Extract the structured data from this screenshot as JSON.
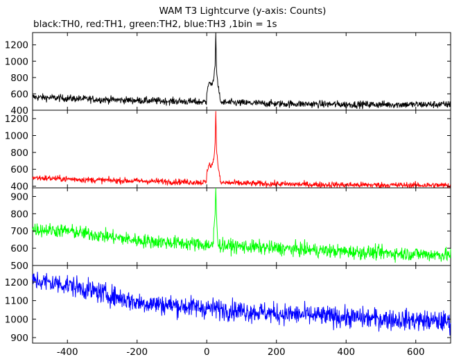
{
  "title": "WAM T3 Lightcurve (y-axis: Counts)",
  "subtitle": "black:TH0, red:TH1, green:TH2, blue:TH3 ,1bin = 1s",
  "chart_data": {
    "type": "line",
    "x_range": [
      -500,
      700
    ],
    "x_ticks": [
      -400,
      -200,
      0,
      200,
      400,
      600
    ],
    "panels": [
      {
        "name": "TH0",
        "color": "#000000",
        "ylim": [
          400,
          1350
        ],
        "y_ticks": [
          400,
          600,
          800,
          1000,
          1200
        ],
        "baseline": [
          [
            -500,
            560
          ],
          [
            -300,
            530
          ],
          [
            0,
            500
          ],
          [
            200,
            480
          ],
          [
            400,
            470
          ],
          [
            700,
            470
          ]
        ],
        "noise": 22,
        "features": [
          [
            0,
            620
          ],
          [
            8,
            750
          ],
          [
            12,
            700
          ],
          [
            20,
            780
          ],
          [
            24,
            950
          ],
          [
            26,
            1350
          ],
          [
            28,
            900
          ],
          [
            32,
            720
          ],
          [
            38,
            560
          ]
        ]
      },
      {
        "name": "TH1",
        "color": "#ff0000",
        "ylim": [
          380,
          1300
        ],
        "y_ticks": [
          400,
          600,
          800,
          1000,
          1200
        ],
        "baseline": [
          [
            -500,
            500
          ],
          [
            -300,
            470
          ],
          [
            0,
            445
          ],
          [
            200,
            425
          ],
          [
            400,
            415
          ],
          [
            700,
            410
          ]
        ],
        "noise": 18,
        "features": [
          [
            0,
            560
          ],
          [
            8,
            680
          ],
          [
            12,
            620
          ],
          [
            20,
            720
          ],
          [
            24,
            900
          ],
          [
            26,
            1300
          ],
          [
            28,
            850
          ],
          [
            32,
            650
          ],
          [
            38,
            500
          ]
        ]
      },
      {
        "name": "TH2",
        "color": "#00ff00",
        "ylim": [
          500,
          950
        ],
        "y_ticks": [
          500,
          600,
          700,
          800,
          900
        ],
        "baseline": [
          [
            -500,
            710
          ],
          [
            -400,
            700
          ],
          [
            -200,
            645
          ],
          [
            0,
            620
          ],
          [
            200,
            600
          ],
          [
            400,
            580
          ],
          [
            700,
            560
          ]
        ],
        "noise": 20,
        "features": [
          [
            20,
            700
          ],
          [
            24,
            800
          ],
          [
            26,
            950
          ],
          [
            28,
            780
          ],
          [
            32,
            650
          ]
        ]
      },
      {
        "name": "TH3",
        "color": "#0000ff",
        "ylim": [
          870,
          1290
        ],
        "y_ticks": [
          900,
          1000,
          1100,
          1200
        ],
        "baseline": [
          [
            -500,
            1210
          ],
          [
            -400,
            1185
          ],
          [
            -300,
            1140
          ],
          [
            -200,
            1090
          ],
          [
            0,
            1060
          ],
          [
            200,
            1030
          ],
          [
            400,
            1010
          ],
          [
            700,
            985
          ]
        ],
        "noise": 28,
        "features": []
      }
    ]
  }
}
